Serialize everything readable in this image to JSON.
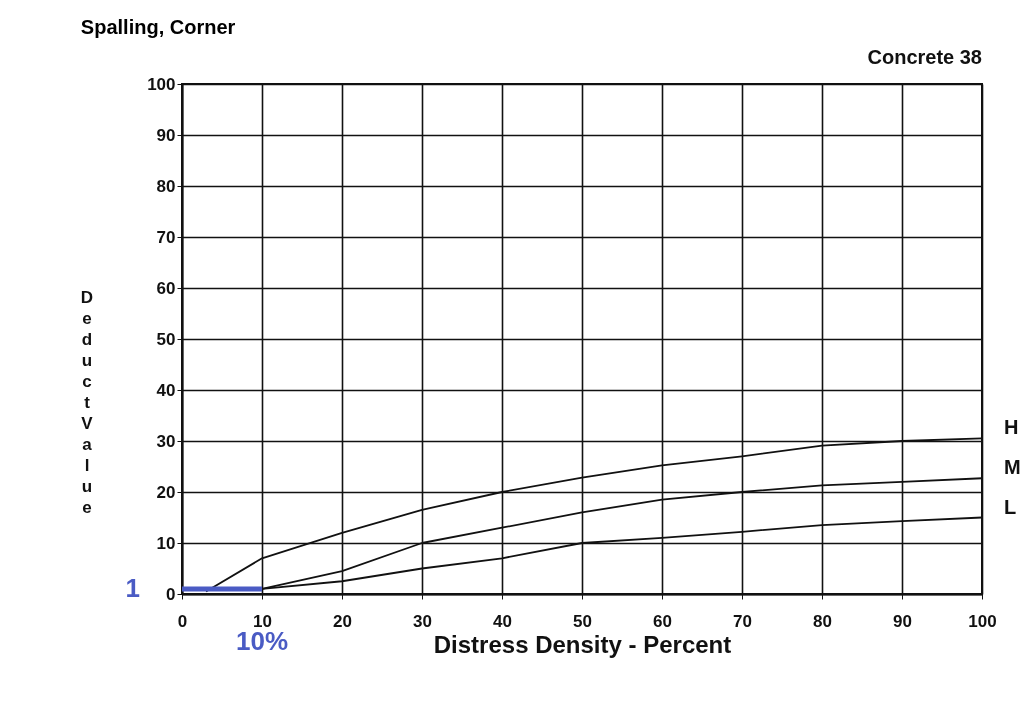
{
  "chart_data": {
    "type": "line",
    "title": "Spalling, Corner",
    "xlabel": "Distress Density - Percent",
    "ylabel": "Deduct Value",
    "xlim": [
      0,
      100
    ],
    "ylim": [
      0,
      100
    ],
    "xticks": [
      0,
      10,
      20,
      30,
      40,
      50,
      60,
      70,
      80,
      90,
      100
    ],
    "yticks": [
      0,
      10,
      20,
      30,
      40,
      50,
      60,
      70,
      80,
      90,
      100
    ],
    "grid": true,
    "legend": false,
    "marker": "none",
    "line_style": "solid",
    "series": [
      {
        "name": "H",
        "color": "#111111",
        "x": [
          3,
          10,
          20,
          30,
          40,
          50,
          60,
          70,
          80,
          90,
          100
        ],
        "values": [
          0.5,
          7,
          12,
          16.5,
          20,
          22.8,
          25.2,
          27,
          29.1,
          30,
          30.5
        ]
      },
      {
        "name": "M",
        "color": "#111111",
        "x": [
          10,
          20,
          30,
          40,
          50,
          60,
          70,
          80,
          90,
          100
        ],
        "values": [
          1,
          4.5,
          10,
          13,
          16,
          18.5,
          20,
          21.3,
          22,
          22.7
        ]
      },
      {
        "name": "L",
        "color": "#111111",
        "x": [
          10,
          20,
          30,
          40,
          50,
          60,
          70,
          80,
          90,
          100
        ],
        "values": [
          1,
          2.5,
          5,
          7,
          10,
          11,
          12.2,
          13.5,
          14.3,
          15
        ]
      },
      {
        "color": "#4a5bc4",
        "x": [
          0,
          10
        ],
        "values": [
          1,
          1
        ]
      }
    ],
    "annotations": [
      "Concrete 38",
      {
        "text": "1",
        "x": 0,
        "y": 1
      },
      {
        "text": "10%",
        "x": 10
      }
    ]
  }
}
